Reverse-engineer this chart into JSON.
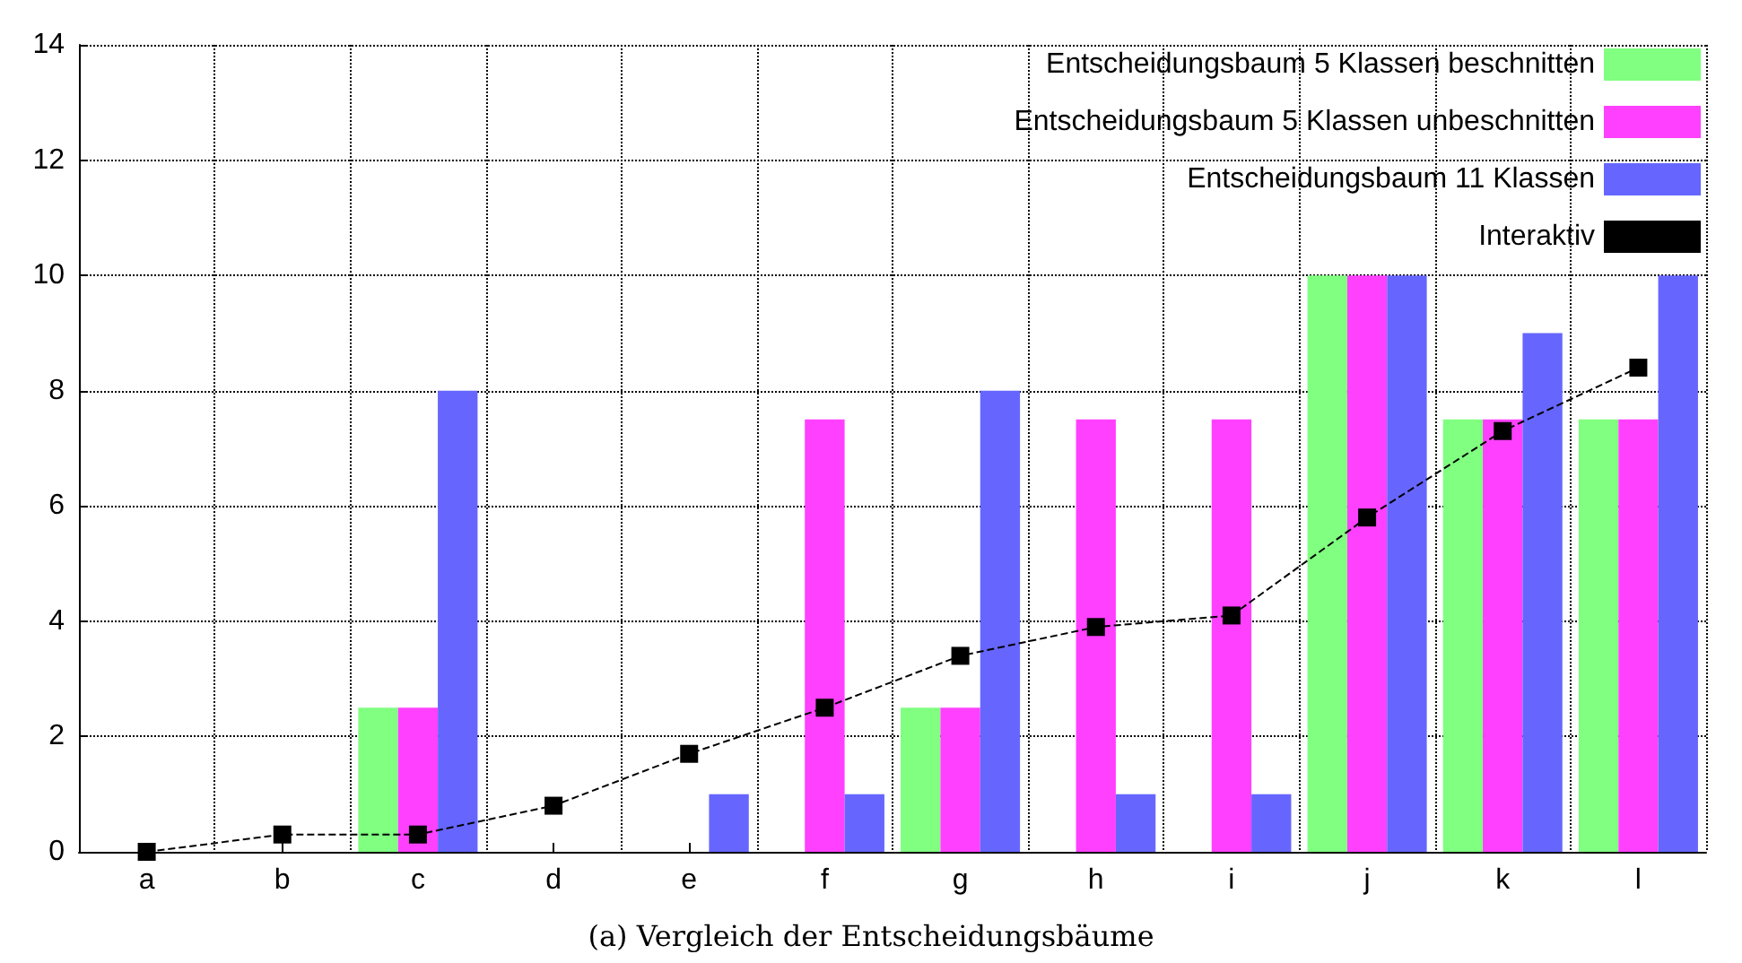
{
  "chart_data": {
    "type": "bar",
    "title": "(a) Vergleich der Entscheidungsbäume",
    "categories": [
      "a",
      "b",
      "c",
      "d",
      "e",
      "f",
      "g",
      "h",
      "i",
      "j",
      "k",
      "l"
    ],
    "series": [
      {
        "name": "Entscheidungsbaum 5 Klassen beschnitten",
        "color": "#80ff80",
        "values": [
          0,
          0,
          2.5,
          0,
          0,
          0,
          2.5,
          0,
          0,
          10,
          7.5,
          7.5
        ]
      },
      {
        "name": "Entscheidungsbaum 5 Klassen unbeschnitten",
        "color": "#ff40ff",
        "values": [
          0,
          0,
          2.5,
          0,
          0,
          7.5,
          2.5,
          7.5,
          7.5,
          10,
          7.5,
          7.5
        ]
      },
      {
        "name": "Entscheidungsbaum 11 Klassen",
        "color": "#6666ff",
        "values": [
          0,
          0,
          8,
          0,
          1,
          1,
          8,
          1,
          1,
          10,
          9,
          10
        ]
      },
      {
        "name": "Interaktiv",
        "type": "line",
        "color": "#000000",
        "marker": "square",
        "line_style": "dashed",
        "values": [
          0,
          0.3,
          0.3,
          0.8,
          1.7,
          2.5,
          3.4,
          3.9,
          4.1,
          5.8,
          7.3,
          8.4
        ]
      }
    ],
    "ylim": [
      0,
      14
    ],
    "yticks": [
      0,
      2,
      4,
      6,
      8,
      10,
      12,
      14
    ],
    "grid": true,
    "legend": "top right"
  }
}
